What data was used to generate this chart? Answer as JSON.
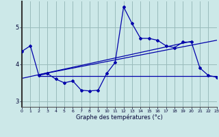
{
  "xlabel": "Graphe des températures (°c)",
  "bg_color": "#cce8e8",
  "line_color": "#0000aa",
  "grid_color": "#99bbbb",
  "xlim": [
    0,
    23
  ],
  "ylim": [
    2.85,
    5.7
  ],
  "yticks": [
    3,
    4,
    5
  ],
  "xticks": [
    0,
    1,
    2,
    3,
    4,
    5,
    6,
    7,
    8,
    9,
    10,
    11,
    12,
    13,
    14,
    15,
    16,
    17,
    18,
    19,
    20,
    21,
    22,
    23
  ],
  "temp_line": {
    "x": [
      0,
      1,
      2,
      3,
      4,
      5,
      6,
      7,
      8,
      9,
      10,
      11,
      12,
      13,
      14,
      15,
      16,
      17,
      18,
      19,
      20,
      21,
      22,
      23
    ],
    "y": [
      4.35,
      4.5,
      3.7,
      3.75,
      3.6,
      3.5,
      3.55,
      3.3,
      3.28,
      3.3,
      3.75,
      4.05,
      5.55,
      5.1,
      4.7,
      4.7,
      4.65,
      4.5,
      4.45,
      4.6,
      4.6,
      3.9,
      3.7,
      3.65
    ]
  },
  "flat_line": {
    "x": [
      2,
      20,
      23
    ],
    "y": [
      3.68,
      3.68,
      3.68
    ]
  },
  "trend_line1": {
    "x": [
      2,
      23
    ],
    "y": [
      3.72,
      4.65
    ]
  },
  "trend_line2": {
    "x": [
      0,
      20
    ],
    "y": [
      3.62,
      4.62
    ]
  }
}
